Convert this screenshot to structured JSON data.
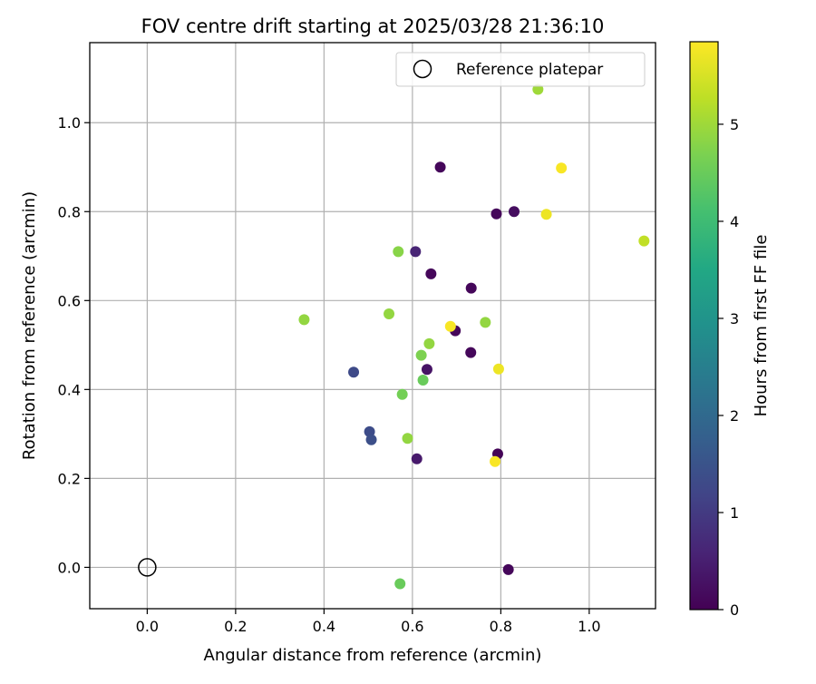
{
  "chart_data": {
    "type": "scatter",
    "title": "FOV centre drift starting at 2025/03/28 21:36:10",
    "xlabel": "Angular distance from reference (arcmin)",
    "ylabel": "Rotation from reference (arcmin)",
    "xlim": [
      -0.13,
      1.15
    ],
    "ylim": [
      -0.093,
      1.18
    ],
    "xticks": [
      0.0,
      0.2,
      0.4,
      0.6,
      0.8,
      1.0
    ],
    "yticks": [
      0.0,
      0.2,
      0.4,
      0.6,
      0.8,
      1.0
    ],
    "xtick_labels": [
      "0.0",
      "0.2",
      "0.4",
      "0.6",
      "0.8",
      "1.0"
    ],
    "ytick_labels": [
      "0.0",
      "0.2",
      "0.4",
      "0.6",
      "0.8",
      "1.0"
    ],
    "grid": true,
    "legend": {
      "placement": "top-right",
      "entries": [
        {
          "label": "Reference platepar",
          "marker": "open-circle",
          "x": 0.0,
          "y": 0.0
        }
      ]
    },
    "colorbar": {
      "label": "Hours from first FF file",
      "range": [
        0,
        5.85
      ],
      "ticks": [
        0,
        1,
        2,
        3,
        4,
        5
      ],
      "tick_labels": [
        "0",
        "1",
        "2",
        "3",
        "4",
        "5"
      ],
      "colormap": "viridis"
    },
    "points": [
      {
        "x": 0.663,
        "y": 0.9,
        "c": 0.1
      },
      {
        "x": 0.79,
        "y": 0.795,
        "c": 0.1
      },
      {
        "x": 0.83,
        "y": 0.8,
        "c": 0.2
      },
      {
        "x": 0.607,
        "y": 0.71,
        "c": 0.6
      },
      {
        "x": 0.642,
        "y": 0.66,
        "c": 0.1
      },
      {
        "x": 0.733,
        "y": 0.628,
        "c": 0.1
      },
      {
        "x": 0.697,
        "y": 0.532,
        "c": 0.1
      },
      {
        "x": 0.732,
        "y": 0.483,
        "c": 0.1
      },
      {
        "x": 0.633,
        "y": 0.445,
        "c": 0.3
      },
      {
        "x": 0.793,
        "y": 0.255,
        "c": 0.05
      },
      {
        "x": 0.61,
        "y": 0.244,
        "c": 0.4
      },
      {
        "x": 0.817,
        "y": -0.005,
        "c": 0.1
      },
      {
        "x": 0.467,
        "y": 0.439,
        "c": 1.3
      },
      {
        "x": 0.503,
        "y": 0.305,
        "c": 1.35
      },
      {
        "x": 0.507,
        "y": 0.287,
        "c": 1.4
      },
      {
        "x": 0.568,
        "y": 0.71,
        "c": 4.8
      },
      {
        "x": 0.355,
        "y": 0.557,
        "c": 4.9
      },
      {
        "x": 0.547,
        "y": 0.57,
        "c": 4.9
      },
      {
        "x": 0.765,
        "y": 0.551,
        "c": 4.9
      },
      {
        "x": 0.638,
        "y": 0.503,
        "c": 4.9
      },
      {
        "x": 0.62,
        "y": 0.477,
        "c": 4.7
      },
      {
        "x": 0.624,
        "y": 0.421,
        "c": 4.5
      },
      {
        "x": 0.577,
        "y": 0.389,
        "c": 4.6
      },
      {
        "x": 0.589,
        "y": 0.29,
        "c": 4.9
      },
      {
        "x": 0.572,
        "y": -0.037,
        "c": 4.5
      },
      {
        "x": 0.884,
        "y": 1.075,
        "c": 5.0
      },
      {
        "x": 1.124,
        "y": 0.734,
        "c": 5.3
      },
      {
        "x": 0.937,
        "y": 0.898,
        "c": 5.8
      },
      {
        "x": 0.903,
        "y": 0.794,
        "c": 5.7
      },
      {
        "x": 0.686,
        "y": 0.542,
        "c": 5.8
      },
      {
        "x": 0.795,
        "y": 0.446,
        "c": 5.7
      },
      {
        "x": 0.787,
        "y": 0.238,
        "c": 5.8
      }
    ]
  }
}
